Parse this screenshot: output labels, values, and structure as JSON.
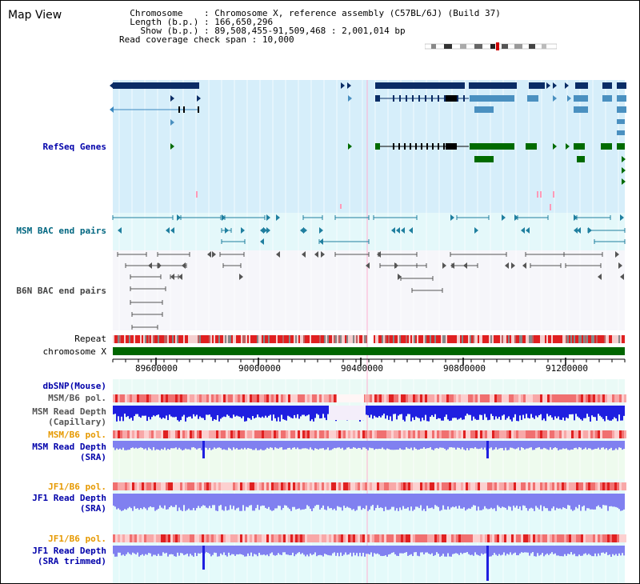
{
  "title": "Map View",
  "header": {
    "chromosome_key": "Chromosome",
    "chromosome_val": "Chromosome X, reference assembly (C57BL/6J) (Build 37)",
    "length_key": "Length (b.p.)",
    "length_val": "166,650,296",
    "show_key": "Show (b.p.)",
    "show_val": "89,508,455-91,509,468 : 2,001,014 bp",
    "span_key": "Read coverage check span",
    "span_val": "10,000"
  },
  "tracks": {
    "refseq": "RefSeq Genes",
    "msm_bac": "MSM BAC end pairs",
    "b6n_bac": "B6N BAC end pairs",
    "repeat": "Repeat",
    "chromosome": "chromosome X",
    "dbsnp": "dbSNP(Mouse)",
    "msm_pol_1": "MSM/B6 pol.",
    "msm_depth_cap_1": "MSM Read Depth",
    "msm_depth_cap_2": "(Capillary)",
    "msm_pol_2": "MSM/B6 pol.",
    "msm_depth_sra_1": "MSM Read Depth",
    "msm_depth_sra_2": "(SRA)",
    "jf1_pol_1": "JF1/B6 pol.",
    "jf1_depth_sra_1": "JF1 Read Depth",
    "jf1_depth_sra_2": "(SRA)",
    "jf1_pol_2": "JF1/B6 pol.",
    "jf1_depth_trim_1": "JF1 Read Depth",
    "jf1_depth_trim_2": "(SRA trimmed)"
  },
  "axis": {
    "ticks": [
      "89600000",
      "90000000",
      "90400000",
      "90800000",
      "91200000"
    ]
  },
  "colors": {
    "refseq_bg": "#d6eefa",
    "bac_bg": "#e4f8fa",
    "gene_dark": "#0b2d66",
    "gene_mid": "#4a90c0",
    "gene_green": "#006b00",
    "chrom_green": "#006600",
    "depth_blue": "#1f1fe0",
    "depth_light": "#8080f0",
    "pol_red": "#f07070"
  }
}
